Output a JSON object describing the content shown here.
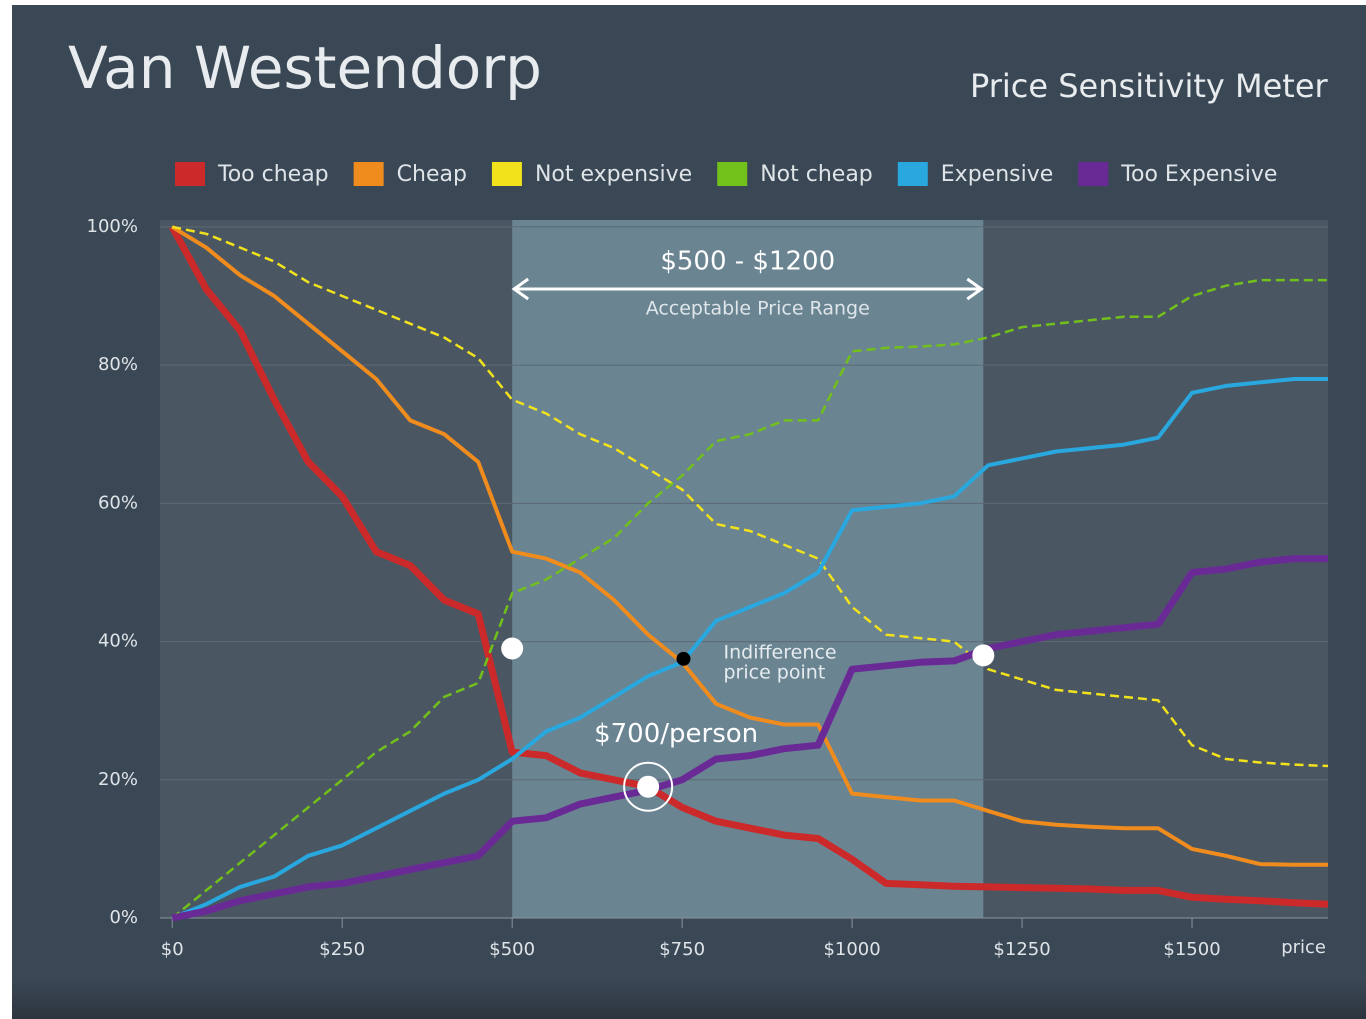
{
  "chart_data": {
    "type": "line",
    "title": "Van Westendorp",
    "subtitle": "Price Sensitivity Meter",
    "x_label": "price",
    "x": [
      0,
      50,
      100,
      150,
      200,
      250,
      300,
      350,
      400,
      450,
      500,
      550,
      600,
      650,
      700,
      750,
      800,
      850,
      900,
      950,
      1000,
      1050,
      1100,
      1150,
      1200,
      1250,
      1300,
      1350,
      1400,
      1450,
      1500,
      1550,
      1600,
      1650,
      1700
    ],
    "series": [
      {
        "name": "Too cheap",
        "color": "#cc2a2a",
        "width": 7,
        "dashed": false,
        "values": [
          100,
          91,
          85,
          75,
          66,
          61,
          53,
          51,
          46,
          44,
          24,
          23.5,
          21,
          20,
          19,
          16,
          14,
          13,
          12,
          11.5,
          8.5,
          5,
          4.8,
          4.6,
          4.5,
          4.4,
          4.3,
          4.2,
          4,
          4,
          3,
          2.7,
          2.5,
          2.2,
          2
        ]
      },
      {
        "name": "Cheap",
        "color": "#f08c1e",
        "width": 4,
        "dashed": false,
        "values": [
          100,
          97,
          93,
          90,
          86,
          82,
          78,
          72,
          70,
          66,
          53,
          52,
          50,
          46,
          41,
          37,
          31,
          29,
          28,
          28,
          18,
          17.5,
          17,
          17,
          15.5,
          14,
          13.5,
          13.2,
          13,
          13,
          10,
          9,
          7.8,
          7.7,
          7.7
        ]
      },
      {
        "name": "Not expensive",
        "color": "#f2e21c",
        "width": 2.5,
        "dashed": true,
        "values": [
          100,
          99,
          97,
          95,
          92,
          90,
          88,
          86,
          84,
          81,
          75,
          73,
          70,
          68,
          65,
          62,
          57,
          56,
          54,
          52,
          45,
          41,
          40.5,
          40,
          36,
          34.5,
          33,
          32.5,
          32,
          31.5,
          25,
          23,
          22.5,
          22.2,
          22
        ]
      },
      {
        "name": "Not cheap",
        "color": "#72c01a",
        "width": 2.5,
        "dashed": true,
        "values": [
          0,
          4,
          8,
          12,
          16,
          20,
          24,
          27,
          32,
          34,
          47,
          49,
          52,
          55,
          60,
          64,
          69,
          70,
          72,
          72,
          82,
          82.5,
          82.7,
          83,
          84,
          85.5,
          86,
          86.5,
          87,
          87,
          90,
          91.5,
          92.3,
          92.3,
          92.3
        ]
      },
      {
        "name": "Expensive",
        "color": "#29a8e0",
        "width": 4,
        "dashed": false,
        "values": [
          0,
          2,
          4.5,
          6,
          9,
          10.5,
          13,
          15.5,
          18,
          20,
          23,
          27,
          29,
          32,
          35,
          37,
          43,
          45,
          47,
          50,
          59,
          59.5,
          60,
          61,
          65.5,
          66.5,
          67.5,
          68,
          68.5,
          69.5,
          76,
          77,
          77.5,
          78,
          78
        ]
      },
      {
        "name": "Too Expensive",
        "color": "#6a2a96",
        "width": 7,
        "dashed": false,
        "values": [
          0,
          1,
          2.5,
          3.5,
          4.5,
          5,
          6,
          7,
          8,
          9,
          14,
          14.5,
          16.5,
          17.5,
          18.5,
          20,
          23,
          23.5,
          24.5,
          25,
          36,
          36.5,
          37,
          37.2,
          39,
          40,
          41,
          41.5,
          42,
          42.5,
          50,
          50.5,
          51.5,
          52,
          52
        ]
      }
    ],
    "xlim": [
      -18,
      1700
    ],
    "ylim": [
      0,
      101
    ],
    "xticks": [
      {
        "value": 0,
        "label": "$0"
      },
      {
        "value": 250,
        "label": "$250"
      },
      {
        "value": 500,
        "label": "$500"
      },
      {
        "value": 750,
        "label": "$750"
      },
      {
        "value": 1000,
        "label": "$1000"
      },
      {
        "value": 1250,
        "label": "$1250"
      },
      {
        "value": 1500,
        "label": "$1500"
      }
    ],
    "yticks": [
      {
        "value": 0,
        "label": "0%"
      },
      {
        "value": 20,
        "label": "20%"
      },
      {
        "value": 40,
        "label": "40%"
      },
      {
        "value": 60,
        "label": "60%"
      },
      {
        "value": 80,
        "label": "80%"
      },
      {
        "value": 100,
        "label": "100%"
      }
    ],
    "grid": true,
    "range": [
      500,
      1193
    ],
    "range_label": "$500 - $1200",
    "range_caption": "Acceptable Price Range",
    "markers": [
      {
        "x": 500,
        "y": 39
      },
      {
        "x": 1193,
        "y": 38
      },
      {
        "x": 700,
        "y": 19
      },
      {
        "x": 752,
        "y": 37.5
      }
    ],
    "indifference_label": [
      "Indifference",
      "price point"
    ],
    "optimal_label": "$700/person"
  }
}
